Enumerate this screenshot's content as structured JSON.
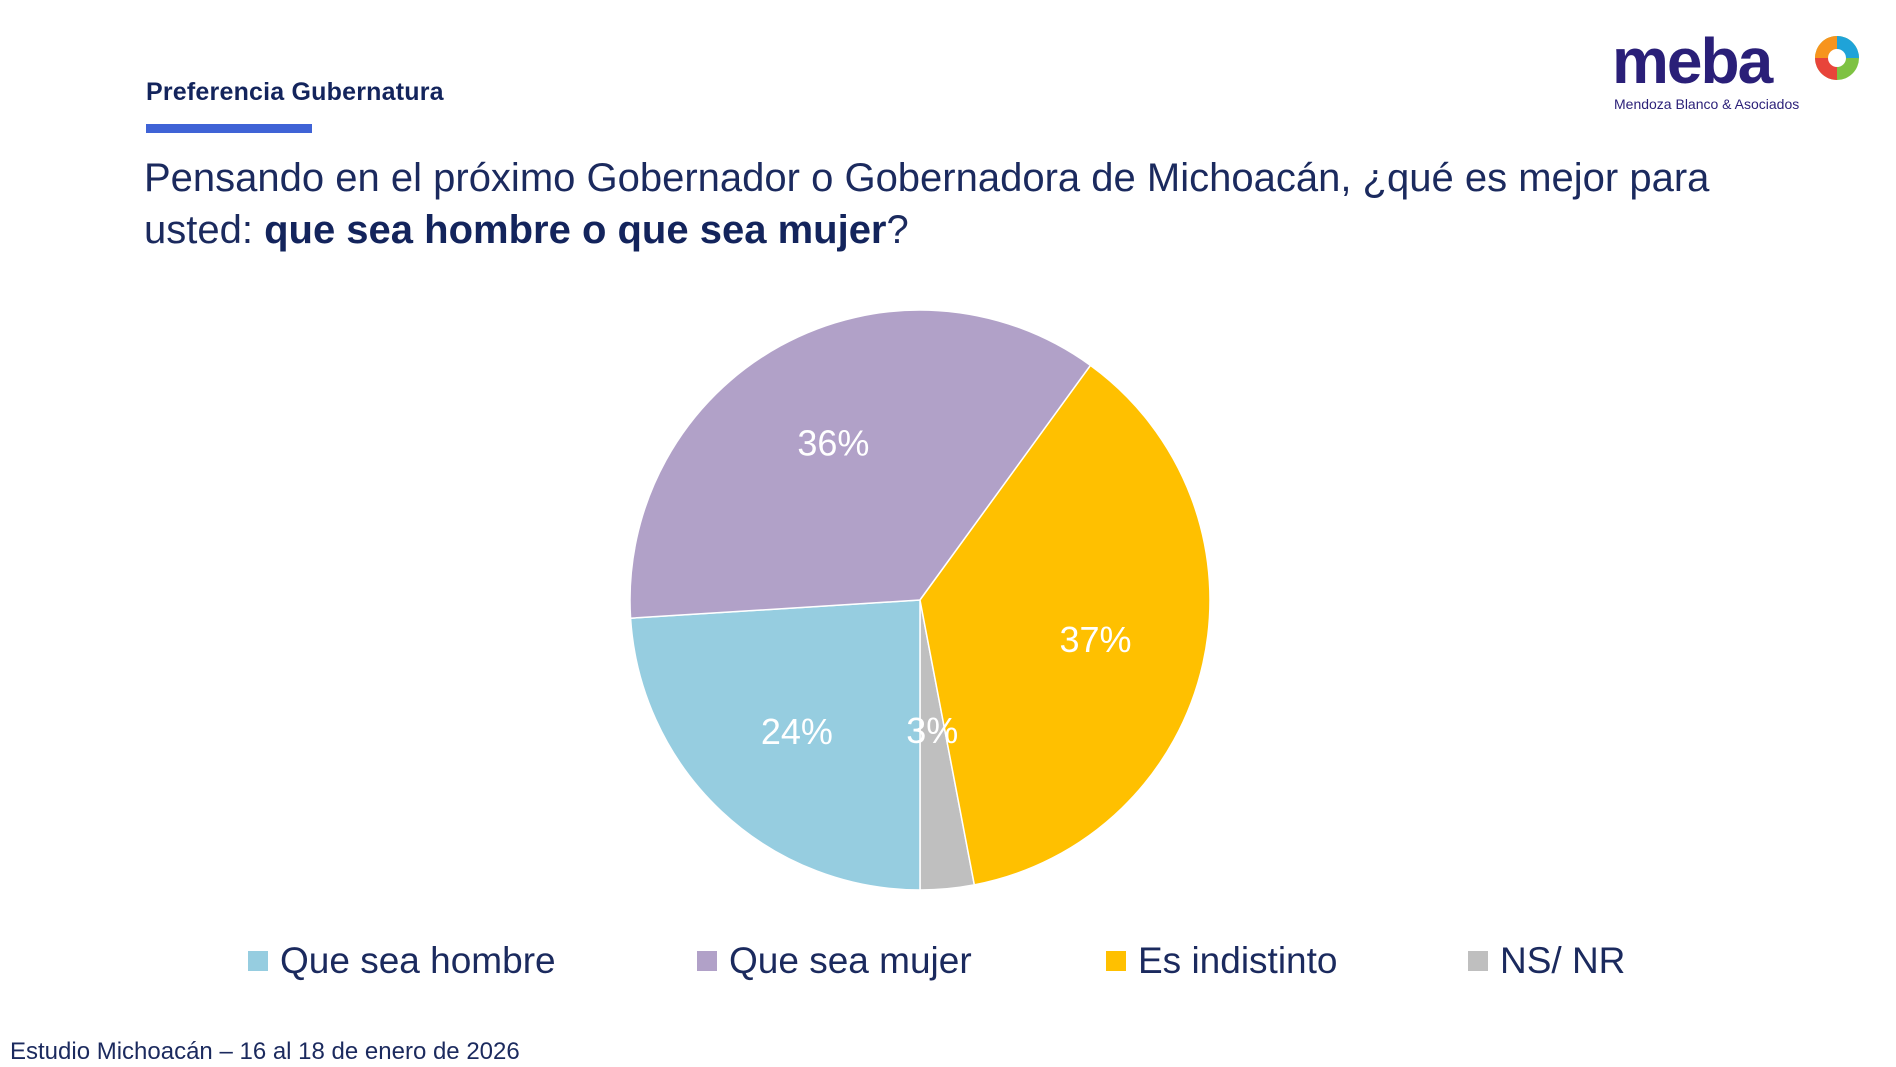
{
  "header": {
    "section_label": "Preferencia Gubernatura",
    "question_regular": "Pensando en el próximo Gobernador o Gobernadora de Michoacán, ¿qué es mejor para usted: ",
    "question_bold": "que sea hombre o que sea mujer",
    "question_end": "?"
  },
  "logo": {
    "wordmark": "meba",
    "subtitle": "Mendoza Blanco & Asociados",
    "icon": "meba-logo-icon"
  },
  "colors": {
    "accent_underline": "#3f63d6",
    "title": "#1b2a5e"
  },
  "chart_data": {
    "type": "pie",
    "categories": [
      "Que sea hombre",
      "Que sea mujer",
      "Es indistinto",
      "NS/ NR"
    ],
    "values": [
      24,
      36,
      37,
      3
    ],
    "labels": [
      "24%",
      "36%",
      "37%",
      "3%"
    ],
    "colors": [
      "#96cde0",
      "#b1a1c8",
      "#ffc000",
      "#bfbfbf"
    ],
    "legend_position": "bottom"
  },
  "footer": {
    "text": "Estudio Michoacán – 16 al 18 de enero de 2026"
  }
}
